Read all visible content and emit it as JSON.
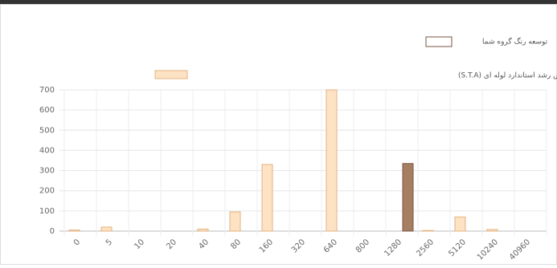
{
  "chart_data": {
    "type": "bar",
    "categories": [
      "0",
      "5",
      "10",
      "20",
      "40",
      "80",
      "160",
      "320",
      "640",
      "800",
      "1280",
      "2560",
      "5120",
      "10240",
      "40960"
    ],
    "series": [
      {
        "name": "نتایج نمونه مجهول ایمونوسرولوژیک برای آزمایش رشد استاندارد لوله ای (S.T.A)",
        "color": "#fde3c4",
        "border": "#e3b27f",
        "values": [
          5,
          20,
          0,
          0,
          10,
          95,
          330,
          0,
          700,
          0,
          0,
          3,
          70,
          8,
          0
        ]
      },
      {
        "name": "توسعه رنگ گروه شما",
        "color": "#a67f63",
        "border": "#7a5640",
        "values": [
          0,
          0,
          0,
          0,
          0,
          0,
          0,
          0,
          0,
          0,
          335,
          0,
          0,
          0,
          0
        ]
      }
    ],
    "ylim": [
      0,
      700
    ],
    "yticks": [
      0,
      100,
      200,
      300,
      400,
      500,
      600,
      700
    ],
    "grid": true
  }
}
